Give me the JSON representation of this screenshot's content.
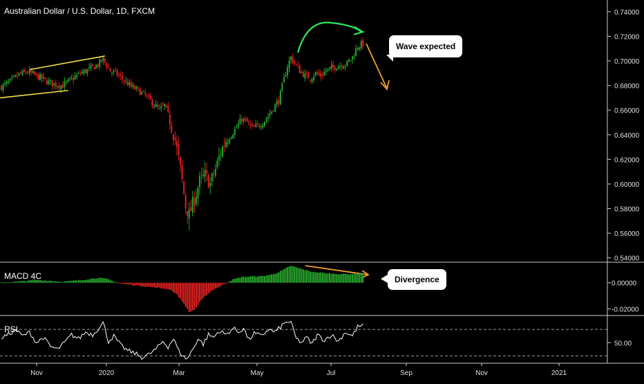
{
  "title": "Australian Dollar / U.S. Dollar, 1D, FXCM",
  "annotations": {
    "wave": "Wave expected",
    "divergence": "Divergence"
  },
  "colors": {
    "up": "#26a52b",
    "down": "#e02020",
    "trendline": "#f5e04a",
    "arc": "#2ee65a",
    "arrow": "#f0a030",
    "rsi": "#ffffff",
    "grid": "#444444"
  },
  "chart_data": [
    {
      "type": "candlestick",
      "title": "Australian Dollar / U.S. Dollar, 1D, FXCM",
      "x_tick_labels": [
        "Nov",
        "2020",
        "Mar",
        "May",
        "Jul",
        "Sep",
        "Nov",
        "2021"
      ],
      "y_tick_labels": [
        "0.74000",
        "0.72000",
        "0.70000",
        "0.68000",
        "0.66000",
        "0.64000",
        "0.62000",
        "0.60000",
        "0.58000",
        "0.56000",
        "0.54000"
      ],
      "ylim": [
        0.537,
        0.745
      ],
      "close_path": [
        [
          0,
          0.679
        ],
        [
          5,
          0.683
        ],
        [
          10,
          0.689
        ],
        [
          15,
          0.691
        ],
        [
          20,
          0.688
        ],
        [
          25,
          0.684
        ],
        [
          30,
          0.681
        ],
        [
          35,
          0.68
        ],
        [
          40,
          0.685
        ],
        [
          45,
          0.69
        ],
        [
          50,
          0.693
        ],
        [
          55,
          0.697
        ],
        [
          58,
          0.701
        ],
        [
          62,
          0.692
        ],
        [
          66,
          0.689
        ],
        [
          70,
          0.684
        ],
        [
          74,
          0.679
        ],
        [
          78,
          0.676
        ],
        [
          82,
          0.672
        ],
        [
          86,
          0.666
        ],
        [
          90,
          0.66
        ],
        [
          93,
          0.664
        ],
        [
          96,
          0.652
        ],
        [
          99,
          0.636
        ],
        [
          102,
          0.612
        ],
        [
          105,
          0.582
        ],
        [
          107,
          0.575
        ],
        [
          110,
          0.588
        ],
        [
          113,
          0.602
        ],
        [
          116,
          0.607
        ],
        [
          119,
          0.6
        ],
        [
          122,
          0.612
        ],
        [
          125,
          0.626
        ],
        [
          128,
          0.636
        ],
        [
          131,
          0.64
        ],
        [
          134,
          0.646
        ],
        [
          137,
          0.653
        ],
        [
          140,
          0.65
        ],
        [
          143,
          0.645
        ],
        [
          146,
          0.647
        ],
        [
          149,
          0.65
        ],
        [
          152,
          0.655
        ],
        [
          155,
          0.662
        ],
        [
          158,
          0.668
        ],
        [
          161,
          0.685
        ],
        [
          163,
          0.696
        ],
        [
          165,
          0.703
        ],
        [
          167,
          0.698
        ],
        [
          170,
          0.692
        ],
        [
          173,
          0.688
        ],
        [
          176,
          0.686
        ],
        [
          179,
          0.69
        ],
        [
          182,
          0.688
        ],
        [
          185,
          0.692
        ],
        [
          188,
          0.694
        ],
        [
          191,
          0.696
        ],
        [
          194,
          0.697
        ],
        [
          197,
          0.698
        ],
        [
          200,
          0.703
        ],
        [
          203,
          0.712
        ],
        [
          206,
          0.714
        ]
      ],
      "trendlines": [
        {
          "points": [
            [
              0,
              0.67
            ],
            [
              38,
              0.676
            ]
          ]
        },
        {
          "points": [
            [
              17,
              0.693
            ],
            [
              59,
              0.704
            ]
          ]
        }
      ]
    },
    {
      "type": "bar",
      "name": "MACD 4C",
      "y_tick_labels": [
        "0.00000",
        "-0.02000"
      ],
      "ylim": [
        -0.0245,
        0.0152
      ],
      "values_path": [
        [
          0,
          0.0002
        ],
        [
          10,
          0.001
        ],
        [
          20,
          0.0022
        ],
        [
          28,
          0.0015
        ],
        [
          35,
          0.0008
        ],
        [
          45,
          0.002
        ],
        [
          55,
          0.0038
        ],
        [
          60,
          0.003
        ],
        [
          66,
          0.0003
        ],
        [
          70,
          -0.001
        ],
        [
          80,
          -0.0025
        ],
        [
          90,
          -0.004
        ],
        [
          96,
          -0.005
        ],
        [
          100,
          -0.009
        ],
        [
          104,
          -0.016
        ],
        [
          107,
          -0.0225
        ],
        [
          110,
          -0.0205
        ],
        [
          113,
          -0.015
        ],
        [
          117,
          -0.009
        ],
        [
          121,
          -0.005
        ],
        [
          125,
          -0.0025
        ],
        [
          128,
          0.0
        ],
        [
          132,
          0.0025
        ],
        [
          137,
          0.0045
        ],
        [
          142,
          0.0048
        ],
        [
          148,
          0.005
        ],
        [
          153,
          0.006
        ],
        [
          158,
          0.008
        ],
        [
          162,
          0.011
        ],
        [
          165,
          0.013
        ],
        [
          170,
          0.011
        ],
        [
          175,
          0.009
        ],
        [
          180,
          0.008
        ],
        [
          186,
          0.0072
        ],
        [
          192,
          0.0068
        ],
        [
          198,
          0.0066
        ],
        [
          202,
          0.007
        ],
        [
          206,
          0.0072
        ]
      ]
    },
    {
      "type": "line",
      "name": "RSI",
      "y_tick_labels": [
        "50.00"
      ],
      "ylim": [
        20,
        90
      ],
      "values_path": [
        [
          0,
          58
        ],
        [
          4,
          62
        ],
        [
          8,
          70
        ],
        [
          12,
          60
        ],
        [
          16,
          66
        ],
        [
          20,
          50
        ],
        [
          24,
          58
        ],
        [
          28,
          44
        ],
        [
          32,
          40
        ],
        [
          36,
          50
        ],
        [
          40,
          62
        ],
        [
          44,
          56
        ],
        [
          48,
          66
        ],
        [
          52,
          62
        ],
        [
          56,
          74
        ],
        [
          58,
          80
        ],
        [
          61,
          52
        ],
        [
          64,
          60
        ],
        [
          68,
          46
        ],
        [
          72,
          38
        ],
        [
          76,
          34
        ],
        [
          80,
          28
        ],
        [
          84,
          32
        ],
        [
          88,
          40
        ],
        [
          92,
          52
        ],
        [
          95,
          44
        ],
        [
          98,
          56
        ],
        [
          101,
          38
        ],
        [
          104,
          28
        ],
        [
          106,
          26
        ],
        [
          109,
          40
        ],
        [
          112,
          56
        ],
        [
          115,
          48
        ],
        [
          118,
          62
        ],
        [
          121,
          58
        ],
        [
          124,
          68
        ],
        [
          128,
          62
        ],
        [
          132,
          72
        ],
        [
          135,
          66
        ],
        [
          138,
          72
        ],
        [
          141,
          54
        ],
        [
          144,
          64
        ],
        [
          148,
          60
        ],
        [
          152,
          70
        ],
        [
          156,
          66
        ],
        [
          160,
          76
        ],
        [
          163,
          82
        ],
        [
          165,
          80
        ],
        [
          168,
          56
        ],
        [
          171,
          50
        ],
        [
          174,
          58
        ],
        [
          177,
          48
        ],
        [
          180,
          62
        ],
        [
          184,
          54
        ],
        [
          188,
          62
        ],
        [
          192,
          52
        ],
        [
          196,
          66
        ],
        [
          200,
          60
        ],
        [
          203,
          74
        ],
        [
          206,
          76
        ]
      ]
    }
  ]
}
